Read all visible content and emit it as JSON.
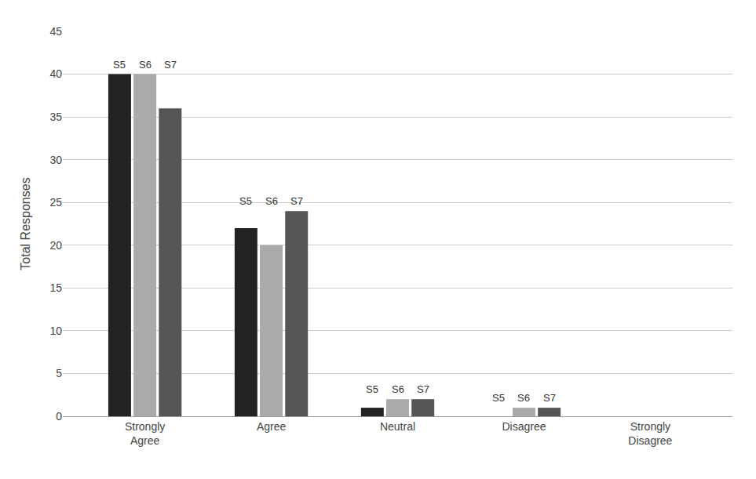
{
  "chart_data": {
    "type": "bar",
    "categories": [
      "Strongly\nAgree",
      "Agree",
      "Neutral",
      "Disagree",
      "Strongly\nDisagree"
    ],
    "series": [
      {
        "name": "S5",
        "color": "#222222",
        "values": [
          40,
          22,
          1,
          0,
          0
        ]
      },
      {
        "name": "S6",
        "color": "#aaaaaa",
        "values": [
          40,
          20,
          2,
          1,
          0
        ]
      },
      {
        "name": "S7",
        "color": "#555555",
        "values": [
          36,
          24,
          2,
          1,
          0
        ]
      }
    ],
    "ylabel": "Total Responses",
    "ylim": [
      0,
      45
    ],
    "yticks": [
      0,
      5,
      10,
      15,
      20,
      25,
      30,
      35,
      40,
      45
    ],
    "grid": true,
    "annotations": [
      {
        "text": "S5",
        "category": "Strongly\nAgree",
        "series": "S5"
      },
      {
        "text": "S6",
        "category": "Strongly\nAgree",
        "series": "S6"
      },
      {
        "text": "S7",
        "category": "Strongly\nAgree",
        "series": "S7"
      },
      {
        "text": "S5",
        "category": "Agree",
        "series": "S5"
      },
      {
        "text": "S6",
        "category": "Agree",
        "series": "S6"
      },
      {
        "text": "S7",
        "category": "Agree",
        "series": "S7"
      },
      {
        "text": "S5",
        "category": "Neutral",
        "series": "S5"
      },
      {
        "text": "S6",
        "category": "Neutral",
        "series": "S6"
      },
      {
        "text": "S7",
        "category": "Neutral",
        "series": "S7"
      },
      {
        "text": "S5",
        "category": "Disagree",
        "series": "S5"
      },
      {
        "text": "S6",
        "category": "Disagree",
        "series": "S6"
      },
      {
        "text": "S7",
        "category": "Disagree",
        "series": "S7"
      }
    ]
  }
}
